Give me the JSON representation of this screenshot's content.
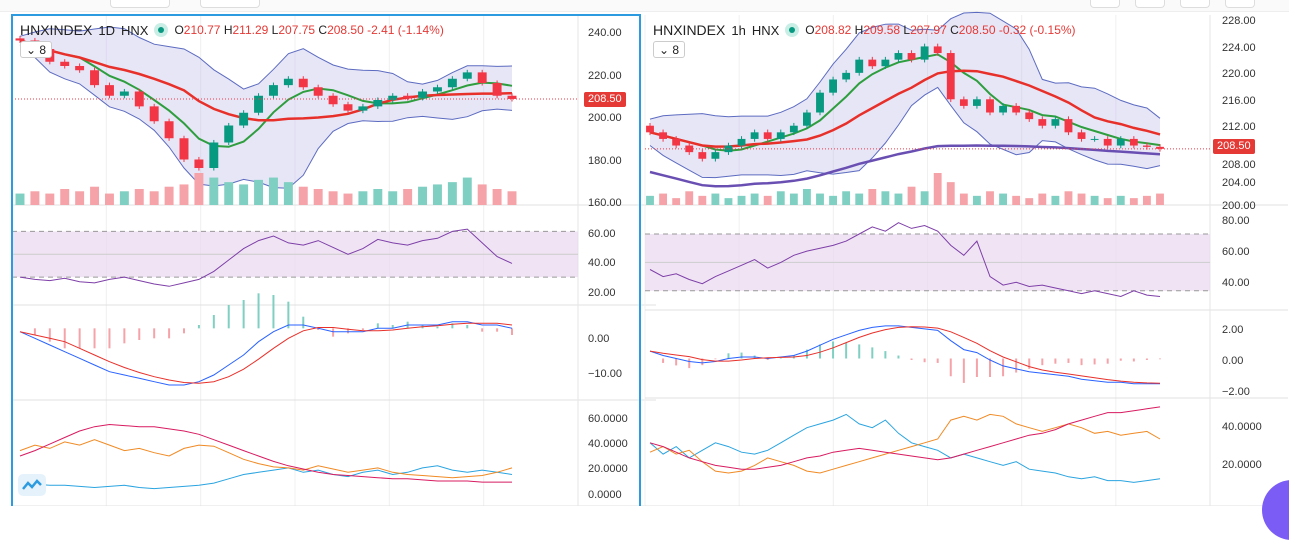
{
  "left": {
    "symbol": "HNXINDEX",
    "interval": "1D",
    "exchange": "HNX",
    "ohlc": {
      "o_label": "O",
      "o": "210.77",
      "h_label": "H",
      "h": "211.29",
      "l_label": "L",
      "l": "207.75",
      "c_label": "C",
      "c": "208.50",
      "change": "-2.41 (-1.14%)"
    },
    "indicators_collapsed": "8",
    "last_price_tag": "208.50"
  },
  "right": {
    "symbol": "HNXINDEX",
    "interval": "1h",
    "exchange": "HNX",
    "ohlc": {
      "o_label": "O",
      "o": "208.82",
      "h_label": "H",
      "h": "209.58",
      "l_label": "L",
      "l": "207.97",
      "c_label": "C",
      "c": "208.50",
      "change": "-0.32 (-0.15%)"
    },
    "indicators_collapsed": "8",
    "last_price_tag": "208.50"
  },
  "colors": {
    "up": "#089981",
    "down": "#f23645",
    "ma_fast": "#2e9e3e",
    "ma_slow": "#e8302a",
    "ma_long": "#6a4fb3",
    "rsi": "#7e3fa8",
    "macd": "#2962ff",
    "signal": "#e8302a",
    "plus_di": "#2aa4e0",
    "minus_di": "#f08a24",
    "adx": "#d81b60"
  },
  "chart_data": [
    {
      "type": "candlestick",
      "title": "HNXINDEX · 1D · HNX",
      "price_ticks": [
        "240.00",
        "220.00",
        "200.00",
        "180.00",
        "160.00"
      ],
      "price_ylim": [
        160,
        240
      ],
      "closes": [
        236,
        232,
        226,
        224,
        222,
        215,
        210,
        212,
        205,
        198,
        190,
        180,
        176,
        188,
        196,
        202,
        210,
        215,
        218,
        214,
        210,
        206,
        203,
        205,
        208,
        210,
        209,
        212,
        214,
        218,
        221,
        216,
        210,
        208.5
      ],
      "volume": [
        5,
        6,
        5,
        7,
        6,
        8,
        5,
        6,
        7,
        6,
        8,
        9,
        14,
        12,
        10,
        9,
        11,
        12,
        10,
        8,
        7,
        6,
        5,
        6,
        7,
        6,
        7,
        8,
        9,
        10,
        12,
        9,
        7,
        6
      ],
      "rsi": {
        "ticks": [
          "60.00",
          "40.00",
          "20.00"
        ],
        "ylim": [
          10,
          80
        ],
        "values": [
          30,
          28,
          27,
          29,
          26,
          25,
          28,
          30,
          27,
          24,
          22,
          25,
          28,
          35,
          45,
          55,
          62,
          66,
          60,
          58,
          62,
          56,
          50,
          55,
          63,
          60,
          58,
          62,
          64,
          70,
          72,
          60,
          48,
          42
        ]
      },
      "macd": {
        "ticks": [
          "0.00",
          "−10.00"
        ],
        "ylim": [
          -20,
          4
        ],
        "values": [
          -1,
          -3,
          -5,
          -7,
          -9,
          -11,
          -13,
          -14,
          -15,
          -16,
          -17,
          -17,
          -16,
          -14,
          -11,
          -8,
          -4,
          -1,
          1,
          1,
          0,
          -1,
          -1,
          -1,
          0,
          0,
          1,
          1,
          1,
          2,
          2,
          1,
          1,
          0
        ]
      },
      "dmi": {
        "ticks": [
          "60.0000",
          "40.0000",
          "20.0000",
          "0.0000"
        ],
        "ylim": [
          0,
          70
        ],
        "adx": [
          35,
          40,
          46,
          52,
          58,
          62,
          64,
          63,
          62,
          62,
          60,
          58,
          55,
          50,
          45,
          40,
          35,
          30,
          26,
          23,
          20,
          18,
          17,
          16,
          15,
          14,
          14,
          13,
          12,
          12,
          12,
          11,
          11,
          11
        ],
        "minus_di": [
          40,
          45,
          42,
          48,
          45,
          50,
          45,
          40,
          42,
          38,
          35,
          42,
          45,
          44,
          38,
          32,
          28,
          25,
          24,
          22,
          26,
          23,
          20,
          22,
          24,
          20,
          18,
          17,
          16,
          15,
          16,
          17,
          20,
          24
        ],
        "plus_di": [
          10,
          9,
          8,
          8,
          7,
          6,
          7,
          8,
          6,
          5,
          6,
          7,
          8,
          10,
          14,
          18,
          20,
          22,
          24,
          20,
          22,
          18,
          16,
          20,
          22,
          18,
          20,
          24,
          26,
          22,
          20,
          22,
          20,
          18
        ]
      }
    },
    {
      "type": "candlestick",
      "title": "HNXINDEX · 1h · HNX",
      "price_ticks": [
        "228.00",
        "224.00",
        "220.00",
        "216.00",
        "212.00",
        "208.00",
        "204.00",
        "200.00"
      ],
      "price_ylim": [
        200,
        228
      ],
      "closes": [
        211,
        210,
        209,
        208,
        207,
        208,
        209,
        210,
        211,
        210,
        211,
        212,
        214,
        217,
        219,
        220,
        222,
        221,
        222,
        223,
        222,
        224,
        223,
        216,
        215,
        216,
        214,
        215,
        214,
        213,
        212,
        213,
        211,
        210,
        210,
        209,
        210,
        209,
        208.8,
        208.5
      ],
      "volume": [
        4,
        5,
        3,
        6,
        4,
        5,
        3,
        4,
        5,
        4,
        6,
        5,
        7,
        5,
        4,
        6,
        5,
        7,
        6,
        5,
        8,
        6,
        14,
        10,
        5,
        4,
        6,
        5,
        4,
        3,
        5,
        4,
        6,
        5,
        4,
        3,
        4,
        3,
        4,
        5
      ],
      "rsi": {
        "ticks": [
          "80.00",
          "60.00",
          "40.00"
        ],
        "ylim": [
          20,
          82
        ],
        "values": [
          45,
          40,
          42,
          38,
          35,
          40,
          44,
          48,
          52,
          46,
          50,
          55,
          58,
          60,
          62,
          65,
          70,
          75,
          72,
          78,
          74,
          76,
          72,
          62,
          55,
          65,
          40,
          34,
          36,
          33,
          34,
          32,
          30,
          28,
          30,
          28,
          26,
          30,
          27,
          26
        ]
      },
      "macd": {
        "ticks": [
          "2.00",
          "0.00",
          "−2.00"
        ],
        "ylim": [
          -2.6,
          2.6
        ],
        "values": [
          0.5,
          0.2,
          0,
          -0.2,
          -0.3,
          -0.2,
          0,
          0.1,
          0.1,
          0,
          0.1,
          0.2,
          0.5,
          0.9,
          1.3,
          1.6,
          1.9,
          2.1,
          2.2,
          2.2,
          2.1,
          2.0,
          1.9,
          1.2,
          0.6,
          0.4,
          -0.1,
          -0.5,
          -0.7,
          -0.9,
          -1,
          -1.1,
          -1.2,
          -1.4,
          -1.5,
          -1.6,
          -1.6,
          -1.7,
          -1.7,
          -1.7
        ]
      },
      "dmi": {
        "ticks": [
          "40.0000",
          "20.0000"
        ],
        "ylim": [
          5,
          50
        ],
        "adx": [
          30,
          28,
          25,
          22,
          20,
          18,
          17,
          16,
          16,
          17,
          18,
          20,
          22,
          23,
          25,
          26,
          27,
          26,
          25,
          24,
          23,
          22,
          21,
          22,
          24,
          26,
          28,
          30,
          32,
          34,
          35,
          37,
          40,
          42,
          44,
          46,
          46,
          47,
          48,
          49
        ],
        "minus_di": [
          25,
          28,
          24,
          26,
          20,
          15,
          14,
          15,
          18,
          22,
          20,
          18,
          15,
          14,
          16,
          18,
          20,
          22,
          24,
          26,
          28,
          30,
          32,
          42,
          44,
          42,
          45,
          44,
          40,
          38,
          36,
          38,
          40,
          38,
          35,
          36,
          34,
          35,
          36,
          32
        ],
        "plus_di": [
          30,
          24,
          28,
          22,
          26,
          30,
          28,
          25,
          24,
          26,
          30,
          34,
          38,
          40,
          42,
          45,
          40,
          38,
          42,
          35,
          30,
          28,
          26,
          22,
          24,
          22,
          20,
          18,
          20,
          16,
          15,
          14,
          12,
          11,
          12,
          10,
          10,
          9,
          10,
          11
        ]
      }
    }
  ]
}
